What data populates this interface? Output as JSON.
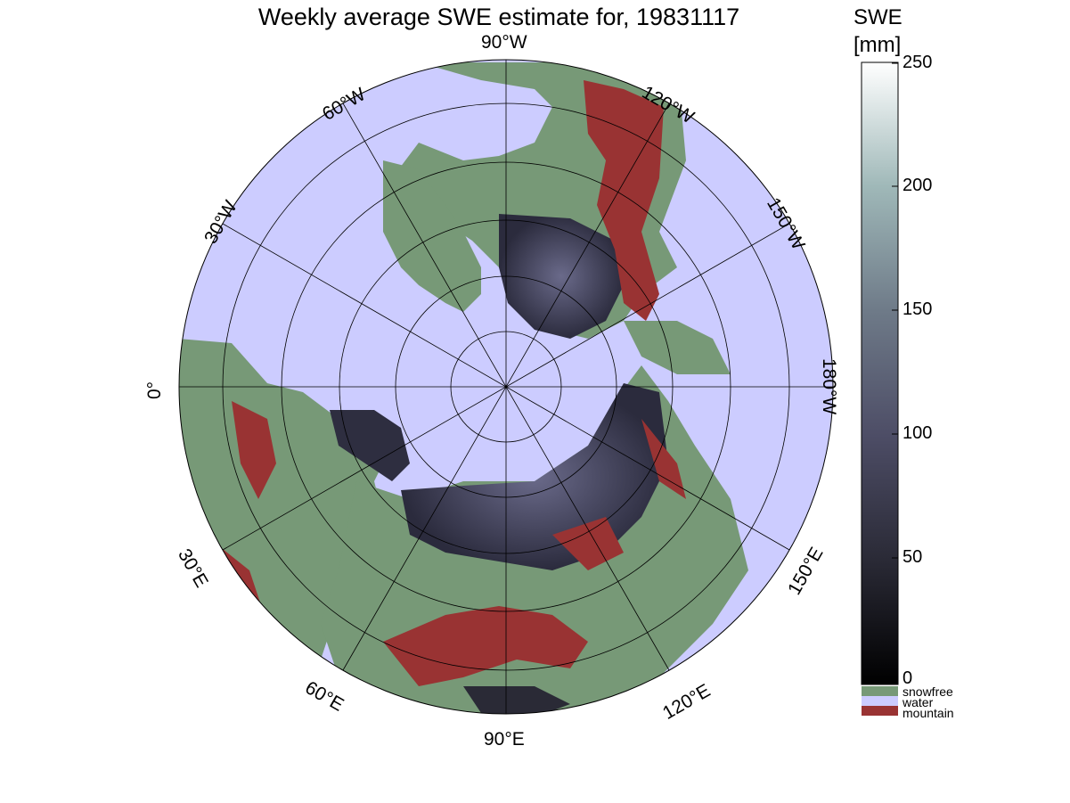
{
  "title": "Weekly average SWE estimate for, 19831117",
  "map": {
    "projection": "north-polar-stereographic",
    "background_colors": {
      "water": "#ccccff",
      "snowfree": "#779977",
      "mountain": "#993333",
      "snow_low": "#1e1e2a",
      "snow_mid": "#4a4a66"
    },
    "longitude_labels": {
      "lon_90w": "90°W",
      "lon_120w": "120°W",
      "lon_150w": "150°W",
      "lon_180w": "180°W",
      "lon_150e": "150°E",
      "lon_120e": "120°E",
      "lon_90e": "90°E",
      "lon_60e": "60°E",
      "lon_30e": "30°E",
      "lon_0": "0°",
      "lon_30w": "30°W",
      "lon_60w": "60°W"
    }
  },
  "colorbar": {
    "title_line1": "SWE",
    "title_line2": "[mm]",
    "min": 0,
    "max": 250,
    "ticks": [
      "250",
      "200",
      "150",
      "100",
      "50",
      "0"
    ],
    "colors": [
      "#000000",
      "#2a2a36",
      "#4d4d66",
      "#6e7a88",
      "#9fb8b8",
      "#ffffff"
    ],
    "categories": [
      {
        "label": "snowfree",
        "color": "#779977"
      },
      {
        "label": "water",
        "color": "#ccccff"
      },
      {
        "label": "mountain",
        "color": "#993333"
      }
    ]
  }
}
